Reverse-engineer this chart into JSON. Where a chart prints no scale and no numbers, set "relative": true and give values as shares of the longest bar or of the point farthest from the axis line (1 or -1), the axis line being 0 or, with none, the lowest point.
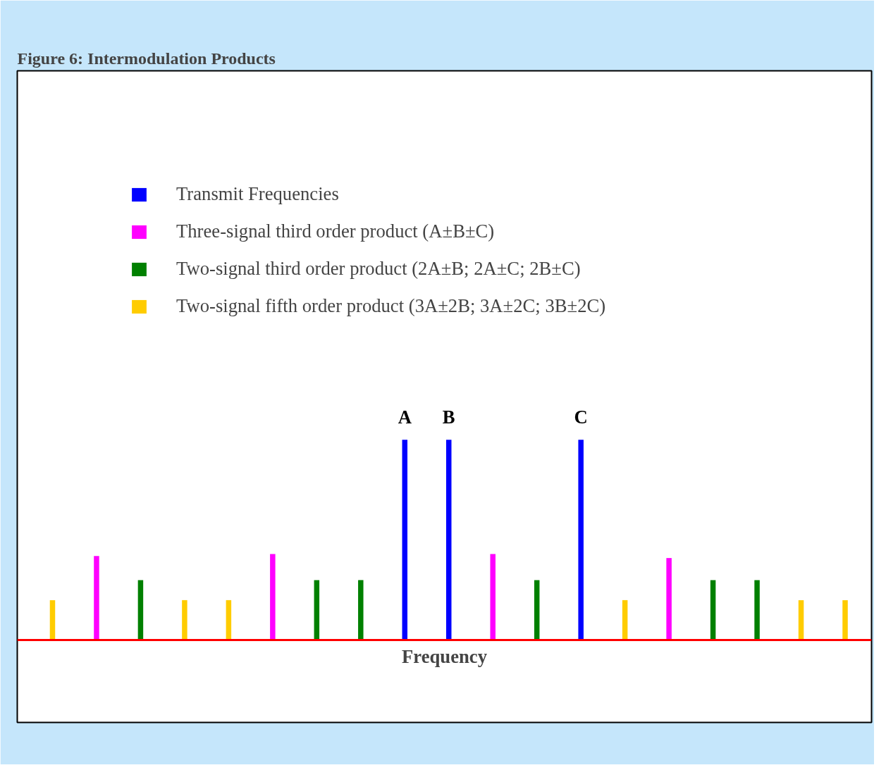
{
  "chart_data": {
    "type": "bar",
    "title": "Figure 6: Intermodulation Products",
    "xlabel": "Frequency",
    "relative": true,
    "legend": "top left",
    "grid": false,
    "categories": [
      null,
      null,
      null,
      null,
      null,
      null,
      null,
      null,
      "A",
      "B",
      null,
      null,
      "C",
      null,
      null,
      null,
      null,
      null,
      null
    ],
    "series": [
      {
        "name": "Transmit Frequencies",
        "color": "#0000ff",
        "values": [
          null,
          null,
          null,
          null,
          null,
          null,
          null,
          null,
          1,
          1,
          null,
          null,
          1,
          null,
          null,
          null,
          null,
          null,
          null
        ]
      },
      {
        "name": "Three-signal third order product (A±B±C)",
        "color": "#ff00ff",
        "values": [
          null,
          0.42,
          null,
          null,
          null,
          0.43,
          null,
          null,
          null,
          null,
          0.43,
          null,
          null,
          null,
          0.41,
          null,
          null,
          null,
          null
        ]
      },
      {
        "name": "Two-signal third order product (2A±B; 2A±C; 2B±C)",
        "color": "#008000",
        "values": [
          null,
          null,
          0.3,
          null,
          null,
          null,
          0.3,
          0.3,
          null,
          null,
          null,
          0.3,
          null,
          null,
          null,
          0.3,
          0.3,
          null,
          null
        ]
      },
      {
        "name": "Two-signal fifth order product (3A±2B; 3A±2C; 3B±2C)",
        "color": "#ffcc00",
        "values": [
          0.2,
          null,
          null,
          0.2,
          0.2,
          null,
          null,
          null,
          null,
          null,
          null,
          null,
          null,
          0.2,
          null,
          null,
          null,
          0.2,
          0.2
        ]
      }
    ]
  }
}
